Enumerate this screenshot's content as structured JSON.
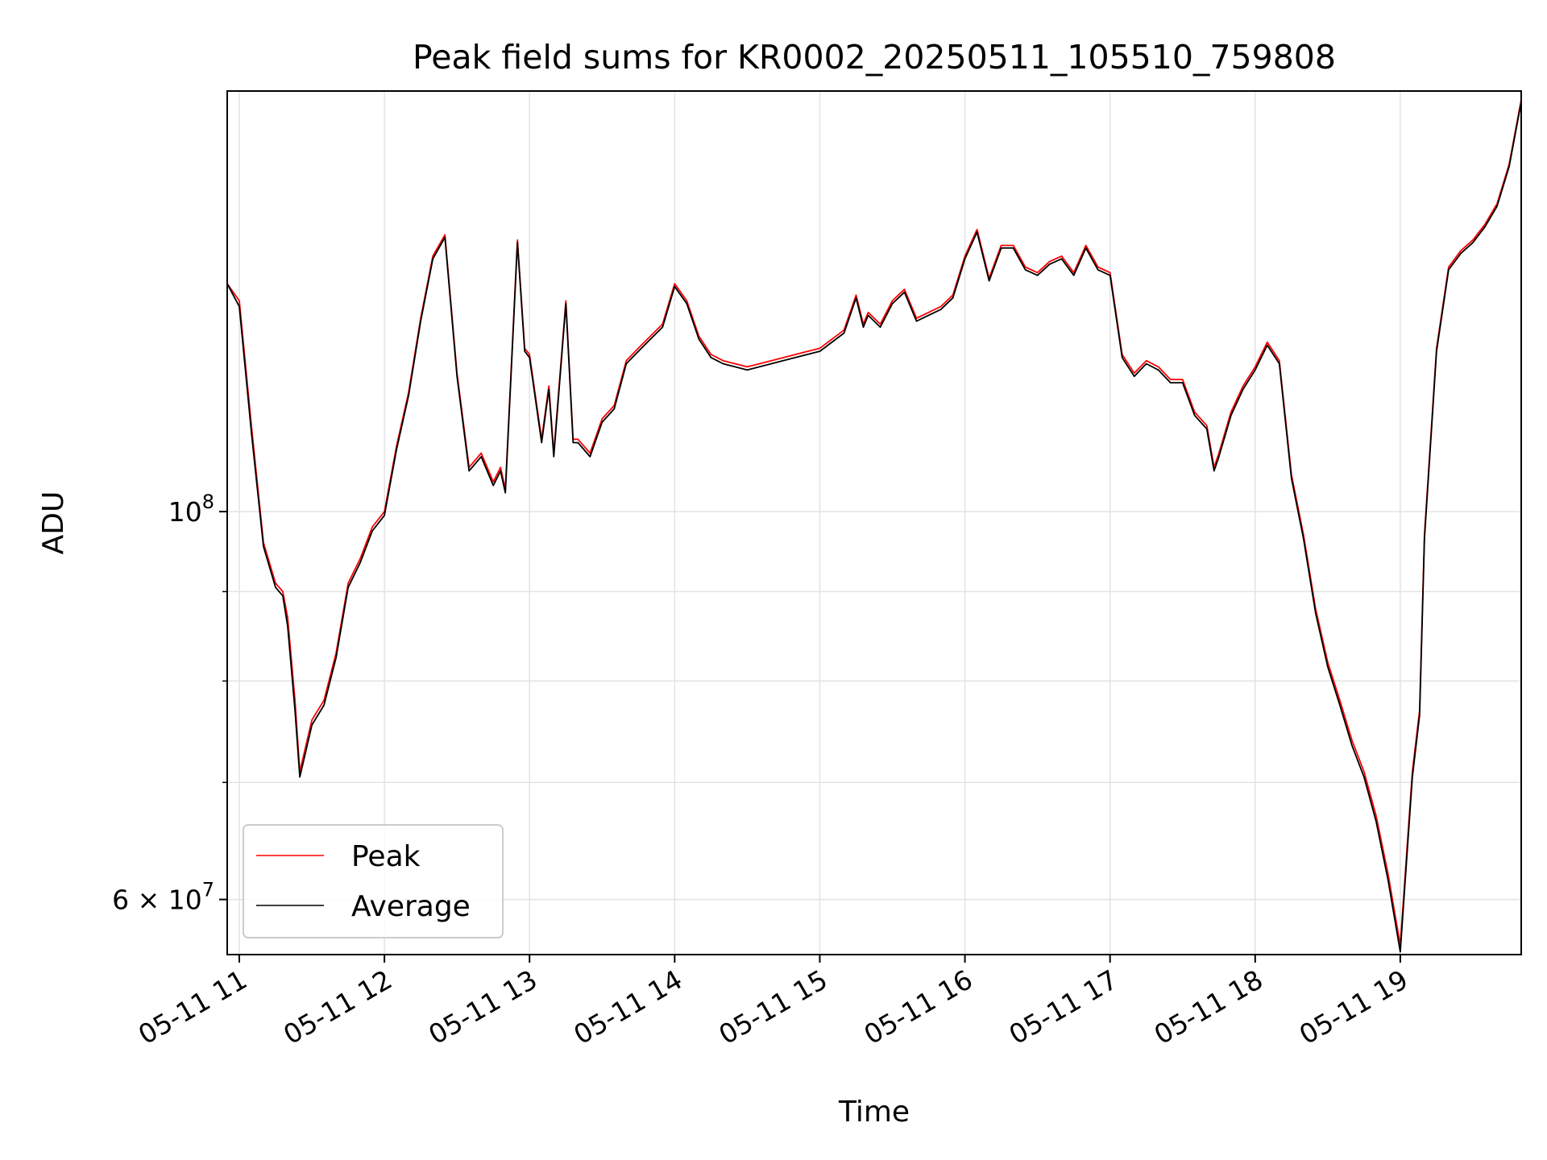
{
  "chart_data": {
    "type": "line",
    "title": "Peak field sums for KR0002_20250511_105510_759808",
    "xlabel": "Time",
    "ylabel": "ADU",
    "yscale": "log",
    "ylim": [
      55800000,
      174000000
    ],
    "xlim": [
      "05-11 10:55",
      "05-11 19:50"
    ],
    "grid": true,
    "legend_position": "lower-left",
    "x_ticks": [
      "05-11 11",
      "05-11 12",
      "05-11 13",
      "05-11 14",
      "05-11 15",
      "05-11 16",
      "05-11 17",
      "05-11 18",
      "05-11 19"
    ],
    "y_ticks": [
      {
        "value": 100000000,
        "label": "10",
        "exp": "8"
      },
      {
        "value": 60000000,
        "label": "6 × 10",
        "exp": "7"
      }
    ],
    "y_minor_ticks": [
      70000000,
      80000000,
      90000000
    ],
    "x": [
      "10:55",
      "11:00",
      "11:05",
      "11:10",
      "11:15",
      "11:18",
      "11:20",
      "11:23",
      "11:25",
      "11:30",
      "11:35",
      "11:40",
      "11:45",
      "11:50",
      "11:55",
      "12:00",
      "12:05",
      "12:10",
      "12:15",
      "12:20",
      "12:25",
      "12:30",
      "12:35",
      "12:40",
      "12:45",
      "12:48",
      "12:50",
      "12:55",
      "12:58",
      "13:00",
      "13:05",
      "13:08",
      "13:10",
      "13:15",
      "13:18",
      "13:20",
      "13:25",
      "13:30",
      "13:35",
      "13:40",
      "13:45",
      "13:50",
      "13:55",
      "14:00",
      "14:05",
      "14:10",
      "14:15",
      "14:20",
      "14:30",
      "14:40",
      "14:50",
      "15:00",
      "15:10",
      "15:15",
      "15:18",
      "15:20",
      "15:25",
      "15:30",
      "15:35",
      "15:40",
      "15:45",
      "15:50",
      "15:55",
      "16:00",
      "16:05",
      "16:10",
      "16:15",
      "16:20",
      "16:25",
      "16:30",
      "16:35",
      "16:40",
      "16:45",
      "16:50",
      "16:55",
      "17:00",
      "17:05",
      "17:10",
      "17:15",
      "17:20",
      "17:25",
      "17:30",
      "17:35",
      "17:40",
      "17:43",
      "17:45",
      "17:50",
      "17:55",
      "18:00",
      "18:05",
      "18:10",
      "18:15",
      "18:20",
      "18:25",
      "18:30",
      "18:35",
      "18:40",
      "18:45",
      "18:50",
      "18:55",
      "19:00",
      "19:05",
      "19:08",
      "19:10",
      "19:15",
      "19:20",
      "19:25",
      "19:30",
      "19:35",
      "19:40",
      "19:45",
      "19:50"
    ],
    "series": [
      {
        "name": "Peak",
        "color": "#ff0000",
        "values": [
          135000000,
          132000000,
          112000000,
          96000000,
          91000000,
          90000000,
          87000000,
          78000000,
          71000000,
          76000000,
          78000000,
          83000000,
          91000000,
          94000000,
          98000000,
          100000000,
          109000000,
          117000000,
          129000000,
          140000000,
          144000000,
          120000000,
          106000000,
          108000000,
          104000000,
          106000000,
          103000000,
          143000000,
          124000000,
          123000000,
          110000000,
          118000000,
          108000000,
          132000000,
          110000000,
          110000000,
          108000000,
          113000000,
          115000000,
          122000000,
          124000000,
          126000000,
          128000000,
          135000000,
          132000000,
          126000000,
          123000000,
          122000000,
          121000000,
          122000000,
          123000000,
          124000000,
          127000000,
          133000000,
          128000000,
          130000000,
          128000000,
          132000000,
          134000000,
          129000000,
          130000000,
          131000000,
          133000000,
          140000000,
          145000000,
          136000000,
          142000000,
          142000000,
          138000000,
          137000000,
          139000000,
          140000000,
          137000000,
          142000000,
          138000000,
          137000000,
          123000000,
          120000000,
          122000000,
          121000000,
          119000000,
          119000000,
          114000000,
          112000000,
          106000000,
          108000000,
          114000000,
          118000000,
          121000000,
          125000000,
          122000000,
          105000000,
          97000000,
          88000000,
          82000000,
          78000000,
          74000000,
          71000000,
          67000000,
          62000000,
          56500000,
          71000000,
          77000000,
          97000000,
          124000000,
          138000000,
          141000000,
          143000000,
          146000000,
          150000000,
          158000000,
          172000000
        ]
      },
      {
        "name": "Average",
        "color": "#000000",
        "values": [
          135000000,
          131000000,
          111000000,
          95500000,
          90500000,
          89500000,
          86000000,
          77000000,
          70500000,
          75500000,
          77500000,
          82500000,
          90500000,
          93500000,
          97500000,
          99500000,
          108500000,
          116500000,
          128500000,
          139500000,
          143500000,
          119500000,
          105500000,
          107500000,
          103500000,
          105500000,
          102500000,
          142500000,
          123500000,
          122500000,
          109500000,
          117500000,
          107500000,
          131500000,
          109500000,
          109500000,
          107500000,
          112500000,
          114500000,
          121500000,
          123500000,
          125500000,
          127500000,
          134500000,
          131500000,
          125500000,
          122500000,
          121500000,
          120500000,
          121500000,
          122500000,
          123500000,
          126500000,
          132500000,
          127500000,
          129500000,
          127500000,
          131500000,
          133500000,
          128500000,
          129500000,
          130500000,
          132500000,
          139500000,
          144500000,
          135500000,
          141500000,
          141500000,
          137500000,
          136500000,
          138500000,
          139500000,
          136500000,
          141500000,
          137500000,
          136500000,
          122500000,
          119500000,
          121500000,
          120500000,
          118500000,
          118500000,
          113500000,
          111500000,
          105500000,
          107500000,
          113500000,
          117500000,
          120500000,
          124500000,
          121500000,
          104500000,
          96500000,
          87500000,
          81500000,
          77500000,
          73500000,
          70500000,
          66500000,
          61500000,
          56000000,
          70500000,
          76500000,
          96500000,
          123500000,
          137500000,
          140500000,
          142500000,
          145500000,
          149500000,
          157500000,
          171500000
        ]
      }
    ]
  }
}
